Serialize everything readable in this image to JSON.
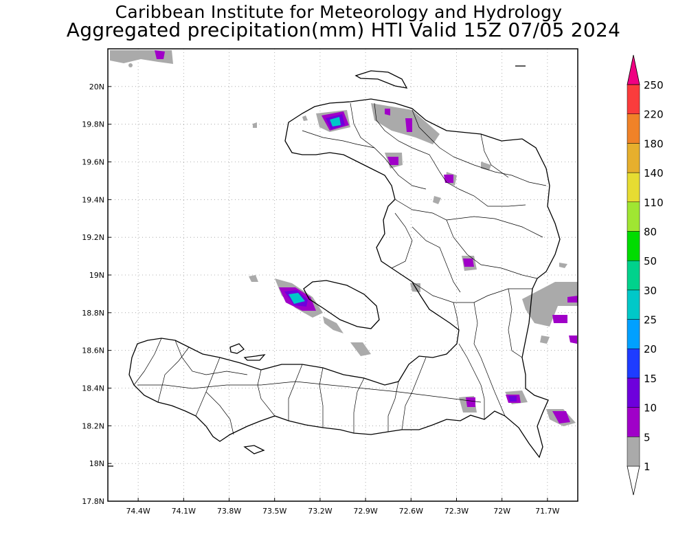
{
  "header": {
    "title_line1": "Caribbean Institute for Meteorology and Hydrology",
    "title_line2": "Aggregated precipitation(mm) HTI Valid 15Z 07/05 2024"
  },
  "axes": {
    "lon_labels": [
      "74.4W",
      "74.1W",
      "73.8W",
      "73.5W",
      "73.2W",
      "72.9W",
      "72.6W",
      "72.3W",
      "72W",
      "71.7W"
    ],
    "lat_labels": [
      "20N",
      "19.8N",
      "19.6N",
      "19.4N",
      "19.2N",
      "19N",
      "18.8N",
      "18.6N",
      "18.4N",
      "18.2N",
      "18N",
      "17.8N"
    ],
    "lon_values": [
      -74.4,
      -74.1,
      -73.8,
      -73.5,
      -73.2,
      -72.9,
      -72.6,
      -72.3,
      -72.0,
      -71.7
    ],
    "lat_values": [
      20.0,
      19.8,
      19.6,
      19.4,
      19.2,
      19.0,
      18.8,
      18.6,
      18.4,
      18.2,
      18.0,
      17.8
    ],
    "lon_range": [
      -74.6,
      -71.5
    ],
    "lat_range": [
      17.8,
      20.2
    ],
    "grid": "dotted"
  },
  "colorbar": {
    "levels": [
      "1",
      "5",
      "10",
      "15",
      "20",
      "25",
      "30",
      "50",
      "80",
      "110",
      "140",
      "180",
      "220",
      "250"
    ],
    "colors": [
      "#ffffff",
      "#aaaaaa",
      "#a000c8",
      "#6e00dc",
      "#1e3cff",
      "#00a0ff",
      "#00c8c8",
      "#00d28c",
      "#00dc00",
      "#a0e632",
      "#e6dc32",
      "#e6af2d",
      "#f08228",
      "#fa3c3c",
      "#f00082"
    ]
  },
  "precip_colors": {
    "light": "#aaaaaa",
    "moderate": "#a000c8",
    "heavy": "#6e00dc",
    "very_heavy": "#00a0ff",
    "extreme": "#00c8c8"
  }
}
